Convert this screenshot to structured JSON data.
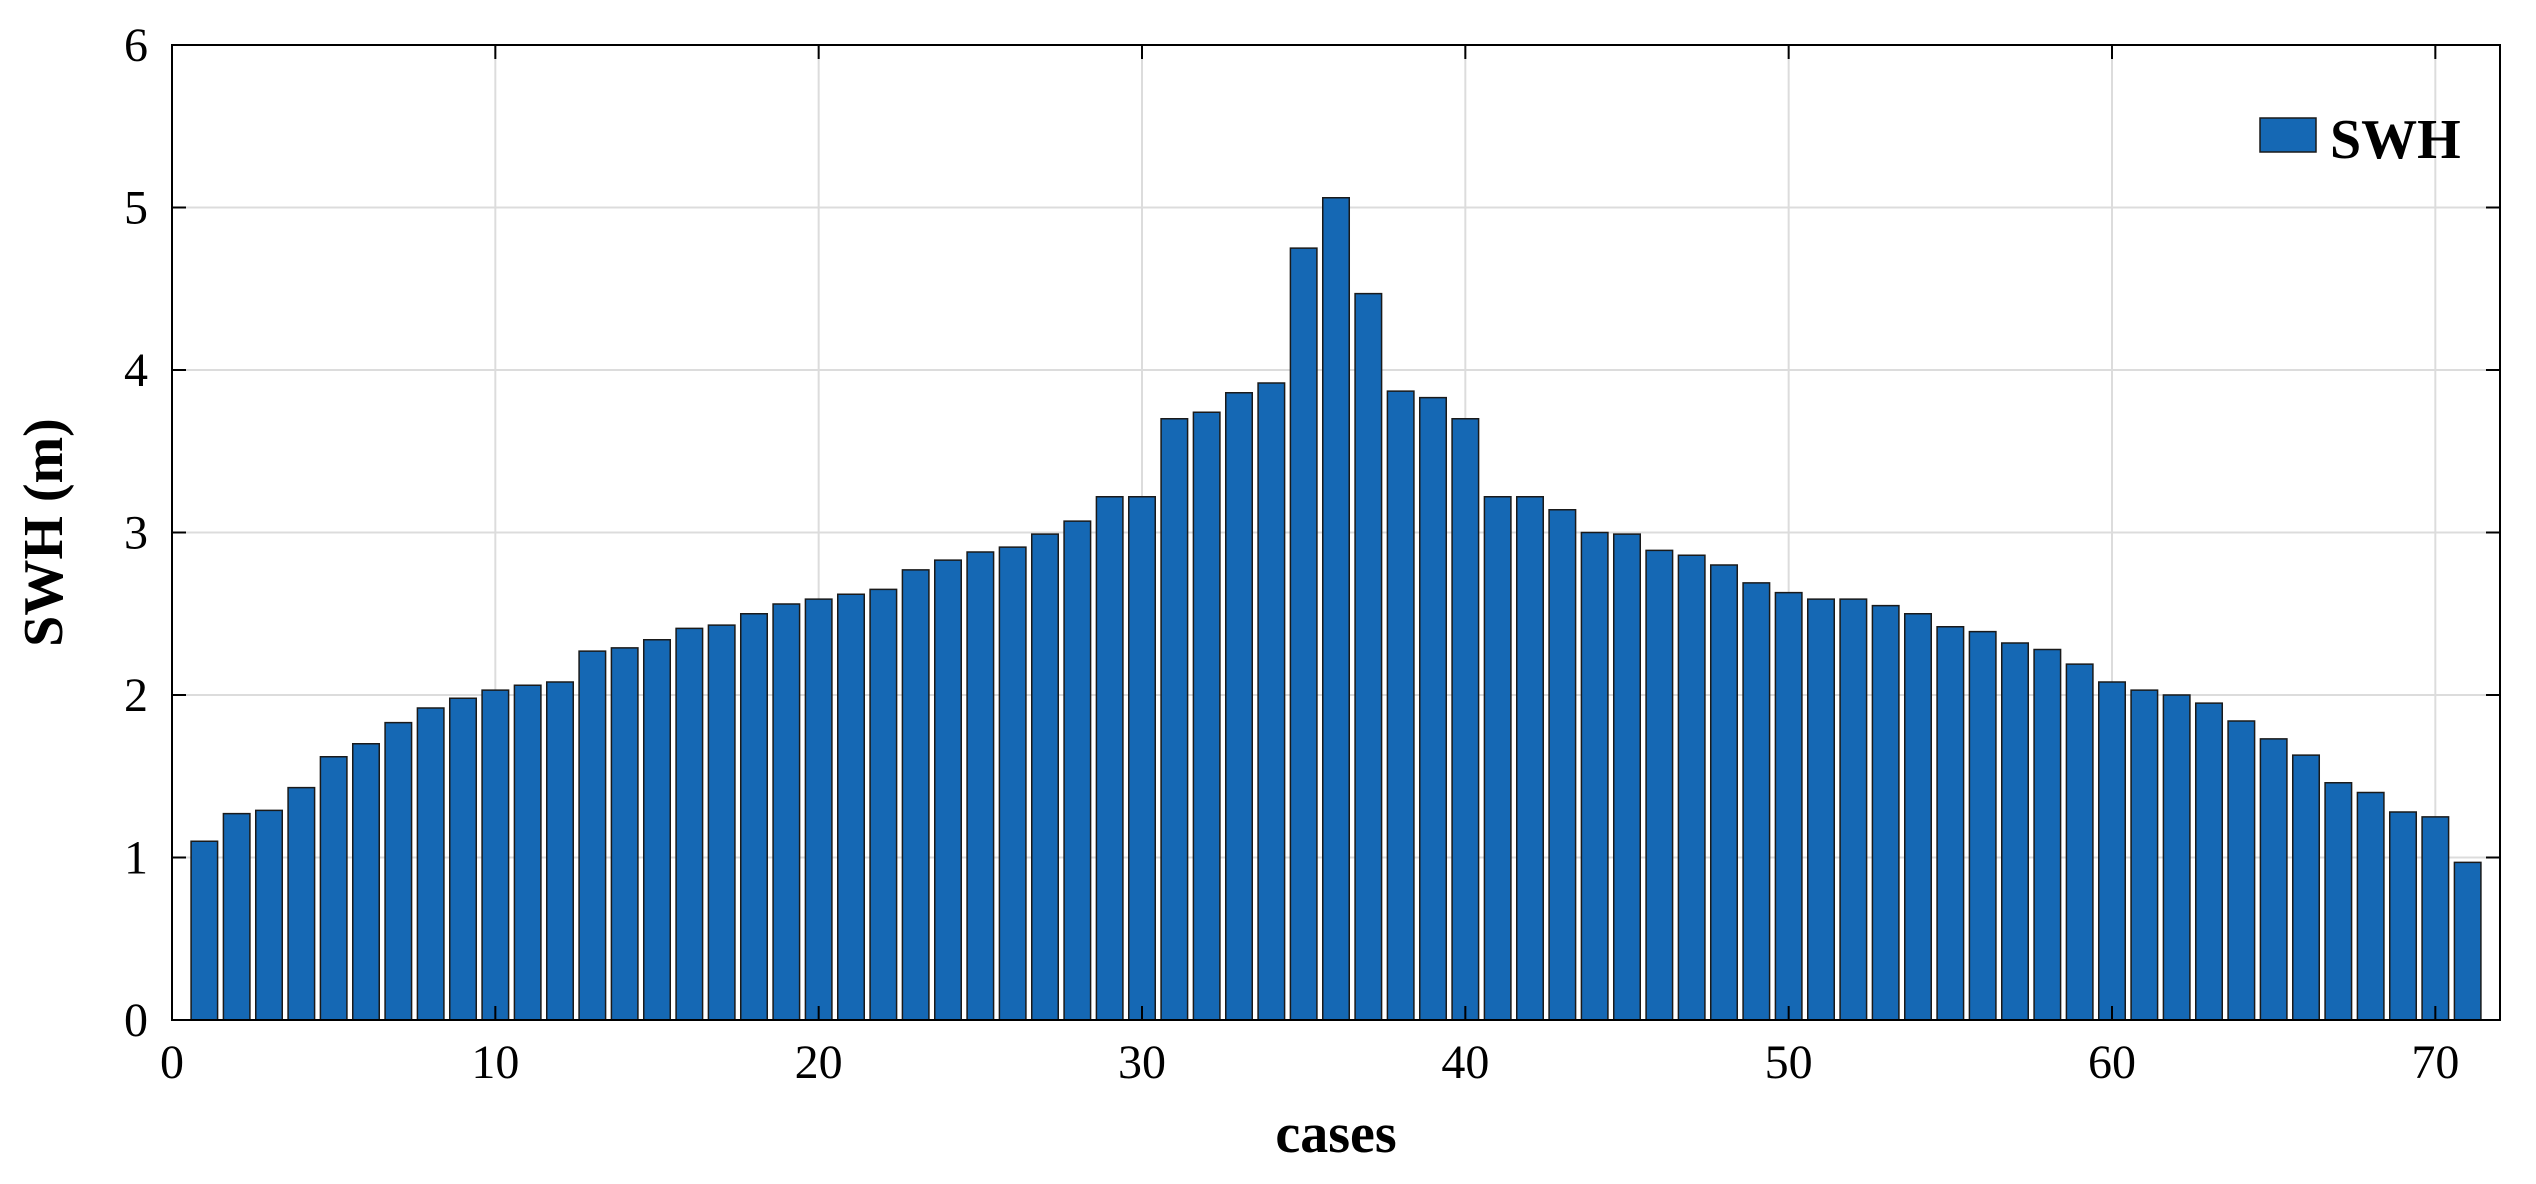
{
  "chart_data": {
    "type": "bar",
    "title": "",
    "xlabel": "cases",
    "ylabel": "SWH (m)",
    "xlim": [
      0,
      72
    ],
    "ylim": [
      0,
      6
    ],
    "xticks": [
      0,
      10,
      20,
      30,
      40,
      50,
      60,
      70
    ],
    "yticks": [
      0,
      1,
      2,
      3,
      4,
      5,
      6
    ],
    "grid": true,
    "legend": {
      "position": "top-right"
    },
    "bar_color": "#1568b4",
    "series": [
      {
        "name": "SWH",
        "x": [
          1,
          2,
          3,
          4,
          5,
          6,
          7,
          8,
          9,
          10,
          11,
          12,
          13,
          14,
          15,
          16,
          17,
          18,
          19,
          20,
          21,
          22,
          23,
          24,
          25,
          26,
          27,
          28,
          29,
          30,
          31,
          32,
          33,
          34,
          35,
          36,
          37,
          38,
          39,
          40,
          41,
          42,
          43,
          44,
          45,
          46,
          47,
          48,
          49,
          50,
          51,
          52,
          53,
          54,
          55,
          56,
          57,
          58,
          59,
          60,
          61,
          62,
          63,
          64,
          65,
          66,
          67,
          68,
          69,
          70,
          71
        ],
        "values": [
          1.1,
          1.27,
          1.29,
          1.43,
          1.62,
          1.7,
          1.83,
          1.92,
          1.98,
          2.03,
          2.06,
          2.08,
          2.27,
          2.29,
          2.34,
          2.41,
          2.43,
          2.5,
          2.56,
          2.59,
          2.62,
          2.65,
          2.77,
          2.83,
          2.88,
          2.91,
          2.99,
          3.07,
          3.22,
          3.22,
          3.7,
          3.74,
          3.86,
          3.92,
          4.75,
          5.06,
          4.47,
          3.87,
          3.83,
          3.7,
          3.22,
          3.22,
          3.14,
          3.0,
          2.99,
          2.89,
          2.86,
          2.8,
          2.69,
          2.63,
          2.59,
          2.59,
          2.55,
          2.5,
          2.42,
          2.39,
          2.32,
          2.28,
          2.19,
          2.08,
          2.03,
          2.0,
          1.95,
          1.84,
          1.73,
          1.63,
          1.46,
          1.4,
          1.28,
          1.25,
          0.97
        ]
      }
    ]
  }
}
